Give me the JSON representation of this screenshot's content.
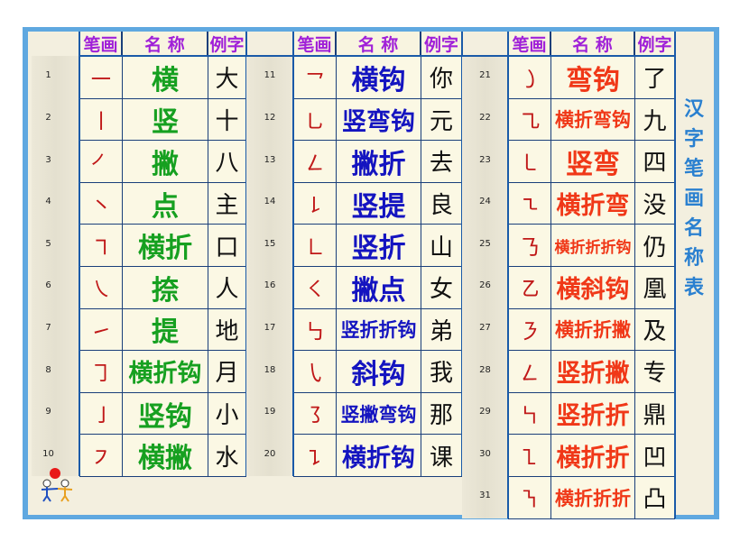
{
  "headers": {
    "stroke": "笔画",
    "name": "名 称",
    "example": "例字"
  },
  "title_chars": [
    "汉",
    "字",
    "笔",
    "画",
    "名",
    "称",
    "表"
  ],
  "colors": {
    "group1": "#16a020",
    "group2": "#1414c0",
    "group3": "#f03818",
    "header": "#a020d8",
    "title": "#2a80d0"
  },
  "groups": [
    {
      "rows": [
        {
          "no": "1",
          "stroke": "㇐",
          "name": "横",
          "example": "大"
        },
        {
          "no": "2",
          "stroke": "㇑",
          "name": "竖",
          "example": "十"
        },
        {
          "no": "3",
          "stroke": "㇒",
          "name": "撇",
          "example": "八"
        },
        {
          "no": "4",
          "stroke": "㇔",
          "name": "点",
          "example": "主"
        },
        {
          "no": "5",
          "stroke": "㇕",
          "name": "横折",
          "example": "口"
        },
        {
          "no": "6",
          "stroke": "㇏",
          "name": "捺",
          "example": "人"
        },
        {
          "no": "7",
          "stroke": "㇀",
          "name": "提",
          "example": "地"
        },
        {
          "no": "8",
          "stroke": "㇆",
          "name": "横折钩",
          "example": "月"
        },
        {
          "no": "9",
          "stroke": "㇚",
          "name": "竖钩",
          "example": "小"
        },
        {
          "no": "10",
          "stroke": "㇇",
          "name": "横撇",
          "example": "水"
        }
      ]
    },
    {
      "rows": [
        {
          "no": "11",
          "stroke": "㇖",
          "name": "横钩",
          "example": "你"
        },
        {
          "no": "12",
          "stroke": "㇟",
          "name": "竖弯钩",
          "example": "元"
        },
        {
          "no": "13",
          "stroke": "㇜",
          "name": "撇折",
          "example": "去"
        },
        {
          "no": "14",
          "stroke": "㇙",
          "name": "竖提",
          "example": "良"
        },
        {
          "no": "15",
          "stroke": "㇗",
          "name": "竖折",
          "example": "山"
        },
        {
          "no": "16",
          "stroke": "㇛",
          "name": "撇点",
          "example": "女"
        },
        {
          "no": "17",
          "stroke": "㇉",
          "name": "竖折折钩",
          "example": "弟"
        },
        {
          "no": "18",
          "stroke": "㇂",
          "name": "斜钩",
          "example": "我"
        },
        {
          "no": "19",
          "stroke": "㇌",
          "name": "竖撇弯钩",
          "example": "那"
        },
        {
          "no": "20",
          "stroke": "㇊",
          "name": "横折钩",
          "example": "课"
        }
      ]
    },
    {
      "rows": [
        {
          "no": "21",
          "stroke": "㇁",
          "name": "弯钩",
          "example": "了"
        },
        {
          "no": "22",
          "stroke": "㇈",
          "name": "横折弯钩",
          "example": "九"
        },
        {
          "no": "23",
          "stroke": "㇄",
          "name": "竖弯",
          "example": "四"
        },
        {
          "no": "24",
          "stroke": "㇍",
          "name": "横折弯",
          "example": "没"
        },
        {
          "no": "25",
          "stroke": "㇡",
          "name": "横折折折钩",
          "example": "仍"
        },
        {
          "no": "26",
          "stroke": "㇠",
          "name": "横斜钩",
          "example": "凰"
        },
        {
          "no": "27",
          "stroke": "㇋",
          "name": "横折折撇",
          "example": "及"
        },
        {
          "no": "28",
          "stroke": "㇜",
          "name": "竖折撇",
          "example": "专"
        },
        {
          "no": "29",
          "stroke": "㇞",
          "name": "竖折折",
          "example": "鼎"
        },
        {
          "no": "30",
          "stroke": "㇅",
          "name": "横折折",
          "example": "凹"
        },
        {
          "no": "31",
          "stroke": "㇎",
          "name": "横折折折",
          "example": "凸"
        }
      ]
    }
  ]
}
